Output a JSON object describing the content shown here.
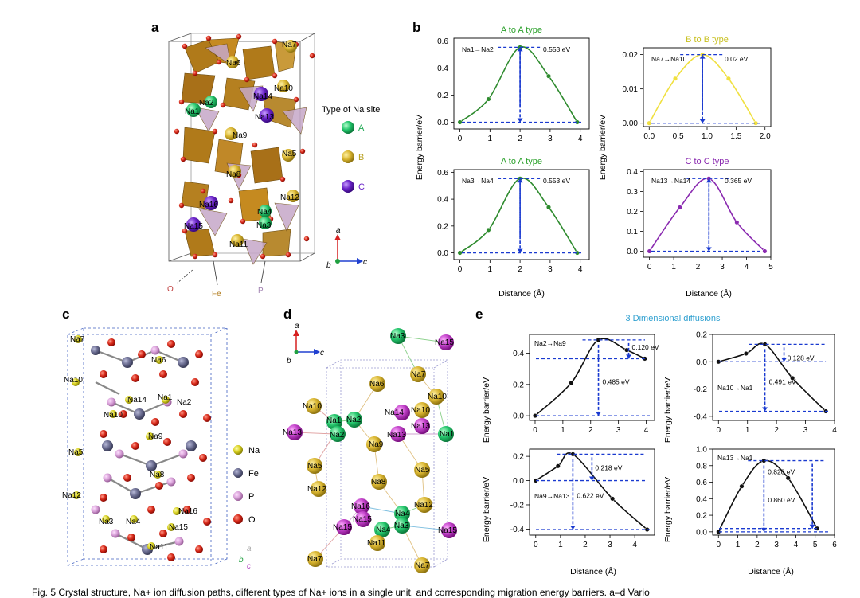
{
  "caption": "Fig. 5 Crystal structure, Na+ ion diffusion paths, different types of Na+ ions in a single unit, and corresponding migration energy barriers. a–d Vario",
  "panel_labels": {
    "a": "a",
    "b": "b",
    "c": "c",
    "d": "d",
    "e": "e"
  },
  "panel_a": {
    "legend_title": "Type of Na site",
    "legend": [
      {
        "label": "A",
        "color": "#2ecc71"
      },
      {
        "label": "B",
        "color": "#e8c83a"
      },
      {
        "label": "C",
        "color": "#7b2fd0"
      }
    ],
    "site_labels": [
      {
        "text": "Na7",
        "type": "B"
      },
      {
        "text": "Na6",
        "type": "B"
      },
      {
        "text": "Na10",
        "type": "B"
      },
      {
        "text": "Na14",
        "type": "C"
      },
      {
        "text": "Na2",
        "type": "A"
      },
      {
        "text": "Na1",
        "type": "A"
      },
      {
        "text": "Na13",
        "type": "C"
      },
      {
        "text": "Na9",
        "type": "B"
      },
      {
        "text": "Na5",
        "type": "B"
      },
      {
        "text": "Na8",
        "type": "B"
      },
      {
        "text": "Na12",
        "type": "B"
      },
      {
        "text": "Na16",
        "type": "C"
      },
      {
        "text": "Na4",
        "type": "A"
      },
      {
        "text": "Na15",
        "type": "C"
      },
      {
        "text": "Na3",
        "type": "A"
      },
      {
        "text": "Na11",
        "type": "B"
      }
    ],
    "atom_labels": [
      "O",
      "Fe",
      "P"
    ],
    "axes": [
      "a",
      "b",
      "c"
    ]
  },
  "panel_c": {
    "legend": [
      {
        "label": "Na",
        "color": "#e0d43a"
      },
      {
        "label": "Fe",
        "color": "#6d6f94"
      },
      {
        "label": "P",
        "color": "#d9a0d9"
      },
      {
        "label": "O",
        "color": "#e02020"
      }
    ],
    "site_labels": [
      "Na7",
      "Na6",
      "Na10",
      "Na14",
      "Na1",
      "Na2",
      "Na10",
      "Na9",
      "Na5",
      "Na8",
      "Na12",
      "Na16",
      "Na3",
      "Na4",
      "Na15",
      "Na11"
    ],
    "axes": [
      "a",
      "b",
      "c"
    ]
  },
  "panel_d": {
    "site_labels": [
      "Na3",
      "Na15",
      "Na7",
      "Na6",
      "Na10",
      "Na10",
      "Na1",
      "Na2",
      "Na14",
      "Na10",
      "Na13",
      "Na2",
      "Na13",
      "Na13",
      "Na1",
      "Na9",
      "Na5",
      "Na8",
      "Na5",
      "Na12",
      "Na16",
      "Na4",
      "Na12",
      "Na15",
      "Na15",
      "Na4",
      "Na3",
      "Na15",
      "Na11",
      "Na7",
      "Na7"
    ],
    "axes": [
      "a",
      "b",
      "c"
    ]
  },
  "panel_e": {
    "title": "3 Dimensional diffusions"
  },
  "common": {
    "xlabel": "Distance (Å)",
    "ylabel": "Energy barrier/eV"
  },
  "chart_data": [
    {
      "type": "line",
      "id": "b1",
      "title": "A to A type",
      "title_color": "#2aa02a",
      "path_label": "Na1→Na2",
      "barrier_label": "0.553 eV",
      "xlim": [
        -0.2,
        4.3
      ],
      "ylim": [
        -0.05,
        0.62
      ],
      "xticks": [
        0,
        1,
        2,
        3,
        4
      ],
      "yticks": [
        0.0,
        0.2,
        0.4,
        0.6
      ],
      "ytick_labels": [
        "0.0",
        "0.2",
        "0.4",
        "0.6"
      ],
      "color": "#2e8b2e",
      "series": [
        {
          "x": [
            0,
            0.95,
            2.0,
            2.95,
            3.9
          ],
          "y": [
            0.0,
            0.17,
            0.553,
            0.34,
            0.0
          ]
        }
      ]
    },
    {
      "type": "line",
      "id": "b2",
      "title": "B to B type",
      "title_color": "#c8c020",
      "path_label": "Na7→Na10",
      "barrier_label": "0.02 eV",
      "xlim": [
        -0.1,
        2.1
      ],
      "ylim": [
        -0.001,
        0.022
      ],
      "xticks": [
        0.0,
        0.5,
        1.0,
        1.5,
        2.0
      ],
      "xtick_labels": [
        "0.0",
        "0.5",
        "1.0",
        "1.5",
        "2.0"
      ],
      "yticks": [
        0.0,
        0.01,
        0.02
      ],
      "ytick_labels": [
        "0.00",
        "0.01",
        "0.02"
      ],
      "color": "#f0e040",
      "series": [
        {
          "x": [
            0.0,
            0.45,
            0.92,
            1.37,
            1.84
          ],
          "y": [
            0.0,
            0.013,
            0.02,
            0.013,
            0.0
          ]
        }
      ]
    },
    {
      "type": "line",
      "id": "b3",
      "title": "A to A type",
      "title_color": "#2aa02a",
      "path_label": "Na3→Na4",
      "barrier_label": "0.553 eV",
      "xlim": [
        -0.2,
        4.3
      ],
      "ylim": [
        -0.05,
        0.62
      ],
      "xticks": [
        0,
        1,
        2,
        3,
        4
      ],
      "yticks": [
        0.0,
        0.2,
        0.4,
        0.6
      ],
      "ytick_labels": [
        "0.0",
        "0.2",
        "0.4",
        "0.6"
      ],
      "color": "#2e8b2e",
      "series": [
        {
          "x": [
            0,
            0.95,
            2.0,
            2.95,
            3.9
          ],
          "y": [
            0.0,
            0.17,
            0.553,
            0.34,
            0.0
          ]
        }
      ]
    },
    {
      "type": "line",
      "id": "b4",
      "title": "C to C type",
      "title_color": "#8a2ab0",
      "path_label": "Na13→Na14",
      "barrier_label": "0.365 eV",
      "xlim": [
        -0.25,
        5.0
      ],
      "ylim": [
        -0.03,
        0.41
      ],
      "xticks": [
        0,
        1,
        2,
        3,
        4,
        5
      ],
      "yticks": [
        0.0,
        0.1,
        0.2,
        0.3,
        0.4
      ],
      "ytick_labels": [
        "0.0",
        "0.1",
        "0.2",
        "0.3",
        "0.4"
      ],
      "color": "#8a2ab0",
      "series": [
        {
          "x": [
            0,
            1.25,
            2.45,
            3.6,
            4.75
          ],
          "y": [
            0.0,
            0.22,
            0.365,
            0.145,
            0.0
          ]
        }
      ]
    },
    {
      "type": "line",
      "id": "e1",
      "path_label": "Na2→Na9",
      "barrier_label": "0.485 eV",
      "barrier2_label": "0.120 eV",
      "xlim": [
        -0.2,
        4.3
      ],
      "ylim": [
        -0.03,
        0.52
      ],
      "xticks": [
        0,
        1,
        2,
        3,
        4
      ],
      "yticks": [
        0.0,
        0.2,
        0.4
      ],
      "ytick_labels": [
        "0.0",
        "0.2",
        "0.4"
      ],
      "color": "#111111",
      "series": [
        {
          "x": [
            0,
            1.3,
            2.28,
            3.3,
            3.95
          ],
          "y": [
            0.0,
            0.21,
            0.485,
            0.42,
            0.365
          ]
        }
      ]
    },
    {
      "type": "line",
      "id": "e2",
      "path_label": "Na10→Na1",
      "barrier_label": "0.491 eV",
      "barrier2_label": "0.128 eV",
      "xlim": [
        -0.2,
        4.0
      ],
      "ylim": [
        -0.43,
        0.2
      ],
      "xticks": [
        0,
        1,
        2,
        3,
        4
      ],
      "yticks": [
        -0.4,
        -0.2,
        0.0,
        0.2
      ],
      "ytick_labels": [
        "-0.4",
        "-0.2",
        "0.0",
        "0.2"
      ],
      "color": "#111111",
      "series": [
        {
          "x": [
            0,
            0.95,
            1.6,
            2.55,
            3.7
          ],
          "y": [
            0.0,
            0.06,
            0.128,
            -0.12,
            -0.363
          ]
        }
      ]
    },
    {
      "type": "line",
      "id": "e3",
      "path_label": "Na9→Na13",
      "barrier_label": "0.622 eV",
      "barrier2_label": "0.218 eV",
      "xlim": [
        -0.25,
        4.8
      ],
      "ylim": [
        -0.45,
        0.26
      ],
      "xticks": [
        0,
        1,
        2,
        3,
        4
      ],
      "yticks": [
        -0.4,
        -0.2,
        0.0,
        0.2
      ],
      "ytick_labels": [
        "-0.4",
        "-0.2",
        "0.0",
        "0.2"
      ],
      "color": "#111111",
      "series": [
        {
          "x": [
            0,
            0.9,
            1.5,
            3.1,
            4.5
          ],
          "y": [
            0.0,
            0.12,
            0.218,
            -0.15,
            -0.404
          ]
        }
      ]
    },
    {
      "type": "line",
      "id": "e4",
      "path_label": "Na13→Na1",
      "barrier_label": "0.860 eV",
      "barrier2_label": "0.820 eV",
      "xlim": [
        -0.3,
        6.0
      ],
      "ylim": [
        -0.04,
        1.0
      ],
      "xticks": [
        0,
        1,
        2,
        3,
        4,
        5,
        6
      ],
      "yticks": [
        0.0,
        0.2,
        0.4,
        0.6,
        0.8,
        1.0
      ],
      "ytick_labels": [
        "0.0",
        "0.2",
        "0.4",
        "0.6",
        "0.8",
        "1.0"
      ],
      "color": "#111111",
      "series": [
        {
          "x": [
            0,
            1.2,
            2.35,
            3.6,
            5.1
          ],
          "y": [
            0.0,
            0.55,
            0.86,
            0.65,
            0.04
          ]
        }
      ]
    }
  ]
}
